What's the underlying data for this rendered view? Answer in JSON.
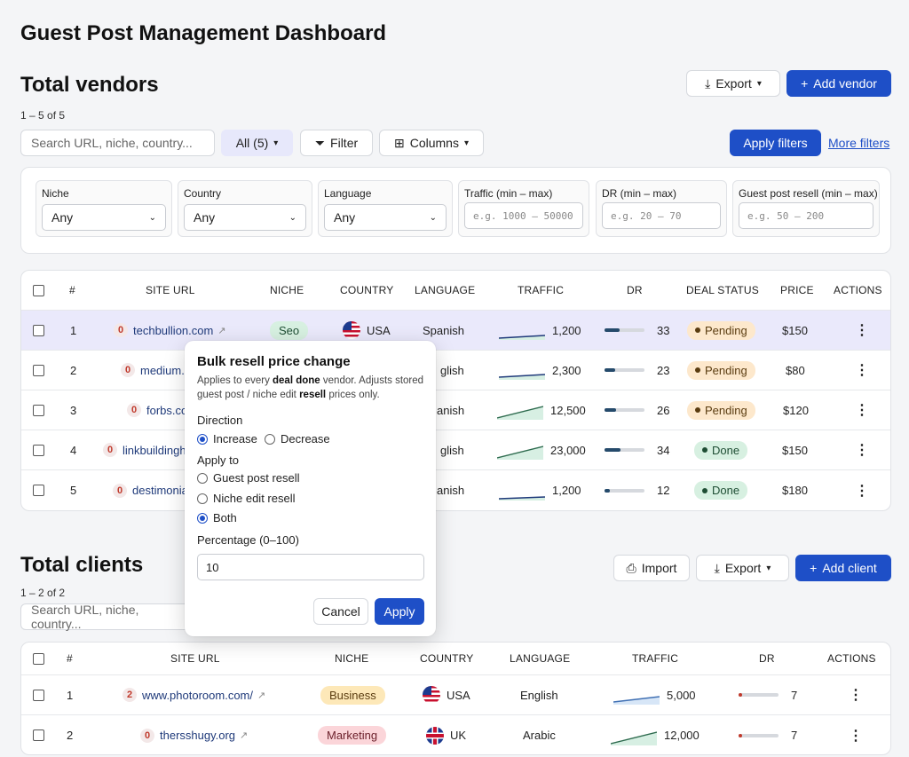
{
  "page_title": "Guest Post Management Dashboard",
  "vendors": {
    "title": "Total vendors",
    "count": "1 – 5 of 5",
    "export_label": "Export",
    "add_label": "Add vendor",
    "search_placeholder": "Search URL, niche, country...",
    "all_label": "All (5)",
    "filter_label": "Filter",
    "columns_label": "Columns",
    "apply_filters_label": "Apply filters",
    "more_filters_label": "More filters",
    "filters": {
      "niche_label": "Niche",
      "niche_value": "Any",
      "country_label": "Country",
      "country_value": "Any",
      "language_label": "Language",
      "language_value": "Any",
      "traffic_label": "Traffic (min – max)",
      "traffic_placeholder": "e.g. 1000 – 50000",
      "dr_label": "DR (min – max)",
      "dr_placeholder": "e.g. 20 – 70",
      "resell_label": "Guest post resell (min – max)",
      "resell_placeholder": "e.g. 50 – 200"
    },
    "headers": {
      "num": "#",
      "site_url": "SITE URL",
      "niche": "NICHE",
      "country": "COUNTRY",
      "language": "LANGUAGE",
      "traffic": "TRAFFIC",
      "dr": "DR",
      "deal_status": "DEAL STATUS",
      "price": "PRICE",
      "actions": "ACTIONS"
    },
    "rows": [
      {
        "num": "1",
        "badge": "0",
        "url": "techbullion.com",
        "niche": "Seo",
        "country": "USA",
        "language": "Spanish",
        "traffic": "1,200",
        "dr": "33",
        "dr_value": 33,
        "status": "Pending",
        "price": "$150",
        "spark": "flat"
      },
      {
        "num": "2",
        "badge": "0",
        "url": "medium.c",
        "niche": "",
        "country": "",
        "language": "glish",
        "traffic": "2,300",
        "dr": "23",
        "dr_value": 23,
        "status": "Pending",
        "price": "$80",
        "spark": "flat"
      },
      {
        "num": "3",
        "badge": "0",
        "url": "forbs.co",
        "niche": "",
        "country": "",
        "language": "anish",
        "traffic": "12,500",
        "dr": "26",
        "dr_value": 26,
        "status": "Pending",
        "price": "$120",
        "spark": "up"
      },
      {
        "num": "4",
        "badge": "0",
        "url": "linkbuildinghi",
        "niche": "",
        "country": "",
        "language": "glish",
        "traffic": "23,000",
        "dr": "34",
        "dr_value": 34,
        "status": "Done",
        "price": "$150",
        "spark": "up"
      },
      {
        "num": "5",
        "badge": "0",
        "url": "destimonia",
        "niche": "",
        "country": "",
        "language": "anish",
        "traffic": "1,200",
        "dr": "12",
        "dr_value": 12,
        "status": "Done",
        "price": "$180",
        "spark": "flat"
      }
    ]
  },
  "clients": {
    "title": "Total clients",
    "count": "1 – 2 of 2",
    "import_label": "Import",
    "export_label": "Export",
    "add_label": "Add client",
    "search_placeholder": "Search URL, niche, country...",
    "headers": {
      "num": "#",
      "site_url": "SITE URL",
      "niche": "NICHE",
      "country": "COUNTRY",
      "language": "LANGUAGE",
      "traffic": "TRAFFIC",
      "dr": "DR",
      "actions": "ACTIONS"
    },
    "rows": [
      {
        "num": "1",
        "badge": "2",
        "url": "www.photoroom.com/",
        "niche": "Business",
        "niche_color": "#fde8b8",
        "country": "USA",
        "flag": "usa",
        "language": "English",
        "traffic": "5,000",
        "dr": "7",
        "dr_value": 7
      },
      {
        "num": "2",
        "badge": "0",
        "url": "thersshugy.org",
        "niche": "Marketing",
        "niche_color": "#fbd5d9",
        "country": "UK",
        "flag": "uk",
        "language": "Arabic",
        "traffic": "12,000",
        "dr": "7",
        "dr_value": 7
      }
    ]
  },
  "modal": {
    "title": "Bulk resell price change",
    "desc_1": "Applies to every ",
    "desc_bold_1": "deal done",
    "desc_2": " vendor. Adjusts stored guest post / niche edit ",
    "desc_bold_2": "resell",
    "desc_3": " prices only.",
    "direction_label": "Direction",
    "increase_label": "Increase",
    "decrease_label": "Decrease",
    "apply_to_label": "Apply to",
    "guest_post_label": "Guest post resell",
    "niche_edit_label": "Niche edit resell",
    "both_label": "Both",
    "percentage_label": "Percentage (0–100)",
    "percentage_value": "10",
    "cancel_label": "Cancel",
    "apply_label": "Apply"
  },
  "colors": {
    "primary": "#1e4fc7",
    "highlight_row": "#eae9fb",
    "pending_bg": "#fde8cc",
    "done_bg": "#d7f0e1",
    "seo_bg": "#d7f0e1"
  }
}
